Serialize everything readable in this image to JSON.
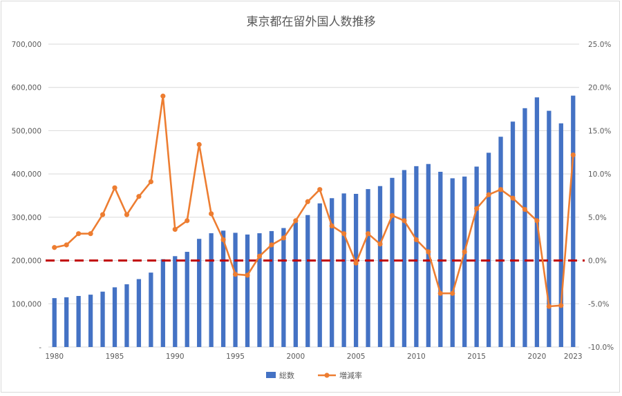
{
  "chart_data": {
    "type": "bar",
    "title": "東京都在留外国人数推移",
    "x": [
      1980,
      1981,
      1982,
      1983,
      1984,
      1985,
      1986,
      1987,
      1988,
      1989,
      1990,
      1991,
      1992,
      1993,
      1994,
      1995,
      1996,
      1997,
      1998,
      1999,
      2000,
      2001,
      2002,
      2003,
      2004,
      2005,
      2006,
      2007,
      2008,
      2009,
      2010,
      2011,
      2012,
      2013,
      2014,
      2015,
      2016,
      2017,
      2018,
      2019,
      2020,
      2021,
      2022,
      2023
    ],
    "x_tick_labels": [
      "1980",
      "1985",
      "1990",
      "1995",
      "2000",
      "2005",
      "2010",
      "2015",
      "2020",
      "2023"
    ],
    "y_tick_labels": [
      "-",
      "100,000",
      "200,000",
      "300,000",
      "400,000",
      "500,000",
      "600,000",
      "700,000"
    ],
    "y2_tick_labels": [
      "-10.0%",
      "-5.0%",
      "0.0%",
      "5.0%",
      "10.0%",
      "15.0%",
      "20.0%",
      "25.0%"
    ],
    "ylim": [
      0,
      700000
    ],
    "y2lim": [
      -10.0,
      25.0
    ],
    "series": [
      {
        "name": "総数",
        "kind": "bar",
        "axis": "left",
        "color": "#4472c4",
        "values": [
          113000,
          115000,
          118000,
          121000,
          128000,
          138000,
          145000,
          157000,
          172000,
          203000,
          210000,
          220000,
          250000,
          263000,
          269000,
          264000,
          260000,
          263000,
          268000,
          275000,
          288000,
          305000,
          332000,
          344000,
          355000,
          354000,
          365000,
          372000,
          391000,
          409000,
          418000,
          423000,
          405000,
          390000,
          394000,
          417000,
          449000,
          486000,
          521000,
          552000,
          577000,
          546000,
          517000,
          581000
        ]
      },
      {
        "name": "増減率",
        "kind": "line",
        "axis": "right",
        "color": "#ed7d31",
        "values": [
          1.5,
          1.8,
          3.1,
          3.1,
          5.3,
          8.4,
          5.3,
          7.4,
          9.1,
          19.0,
          3.6,
          4.6,
          13.4,
          5.4,
          2.4,
          -1.6,
          -1.7,
          0.5,
          1.8,
          2.6,
          4.6,
          6.8,
          8.2,
          4.0,
          3.1,
          -0.3,
          3.1,
          1.9,
          5.2,
          4.6,
          2.4,
          1.0,
          -3.8,
          -3.8,
          1.0,
          6.0,
          7.6,
          8.2,
          7.2,
          5.9,
          4.6,
          -5.3,
          -5.2,
          12.2
        ]
      }
    ],
    "reference_line": {
      "axis": "right",
      "value": 0.0,
      "color": "#c00000",
      "style": "dashed"
    },
    "legend": {
      "position": "bottom"
    },
    "grid": true
  }
}
